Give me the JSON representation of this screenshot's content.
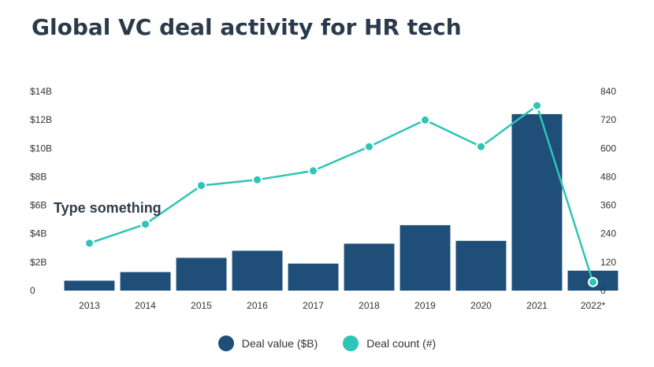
{
  "chart_data": {
    "type": "bar",
    "title": "Global VC deal activity for HR tech",
    "annotation": "Type something",
    "categories": [
      "2013",
      "2014",
      "2015",
      "2016",
      "2017",
      "2018",
      "2019",
      "2020",
      "2021",
      "2022*"
    ],
    "series": [
      {
        "name": "Deal value ($B)",
        "type": "bar",
        "axis": "left",
        "color": "#1f4e79",
        "values": [
          0.7,
          1.3,
          2.3,
          2.8,
          1.9,
          3.3,
          4.6,
          3.5,
          12.4,
          1.4
        ]
      },
      {
        "name": "Deal count (#)",
        "type": "line",
        "axis": "right",
        "color": "#2ec4b6",
        "values": [
          200,
          280,
          443,
          467,
          505,
          607,
          719,
          607,
          780,
          36
        ]
      }
    ],
    "y_left": {
      "range": [
        0,
        14
      ],
      "ticks": [
        0,
        2,
        4,
        6,
        8,
        10,
        12,
        14
      ],
      "tick_labels": [
        "0",
        "$2B",
        "$4B",
        "$6B",
        "$8B",
        "$10B",
        "$12B",
        "$14B"
      ]
    },
    "y_right": {
      "range": [
        0,
        840
      ],
      "ticks": [
        0,
        120,
        240,
        360,
        480,
        600,
        720,
        840
      ],
      "tick_labels": [
        "0",
        "120",
        "240",
        "360",
        "480",
        "600",
        "720",
        "840"
      ]
    },
    "grid": false,
    "legend": {
      "position": "bottom-center",
      "items": [
        "Deal value ($B)",
        "Deal count (#)"
      ]
    }
  }
}
